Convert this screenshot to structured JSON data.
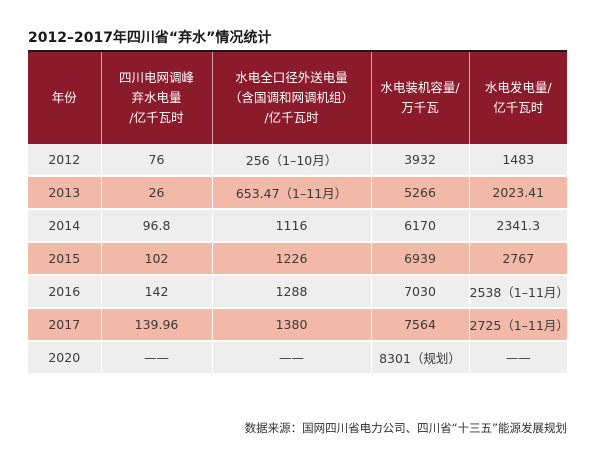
{
  "title": "2012–2017年四川省“弃水”情况统计",
  "headers": [
    [
      "年份"
    ],
    [
      "四川电网调峰",
      "弃水电量",
      "/亿千瓦时"
    ],
    [
      "水电全口径外送电量",
      "（含国调和网调机组）",
      "/亿千瓦时"
    ],
    [
      "水电装机容量/",
      "万千瓦"
    ],
    [
      "水电发电量/",
      "亿千瓦时"
    ]
  ],
  "rows": [
    [
      "2012",
      "76",
      "256（1–10月）",
      "3932",
      "1483"
    ],
    [
      "2013",
      "26",
      "653.47（1–11月）",
      "5266",
      "2023.41"
    ],
    [
      "2014",
      "96.8",
      "1116",
      "6170",
      "2341.3"
    ],
    [
      "2015",
      "102",
      "1226",
      "6939",
      "2767"
    ],
    [
      "2016",
      "142",
      "1288",
      "7030",
      "2538（1–11月）"
    ],
    [
      "2017",
      "139.96",
      "1380",
      "7564",
      "2725（1–11月）"
    ],
    [
      "2020",
      "——",
      "——",
      "8301（规划）",
      "——"
    ]
  ],
  "source": "数据来源：国网四川省电力公司、四川省“十三五”能源发展规划",
  "colors": {
    "header_bg": "#8b1a2b",
    "row_grey": "#eeeeee",
    "row_pink": "#f2b8a8"
  }
}
